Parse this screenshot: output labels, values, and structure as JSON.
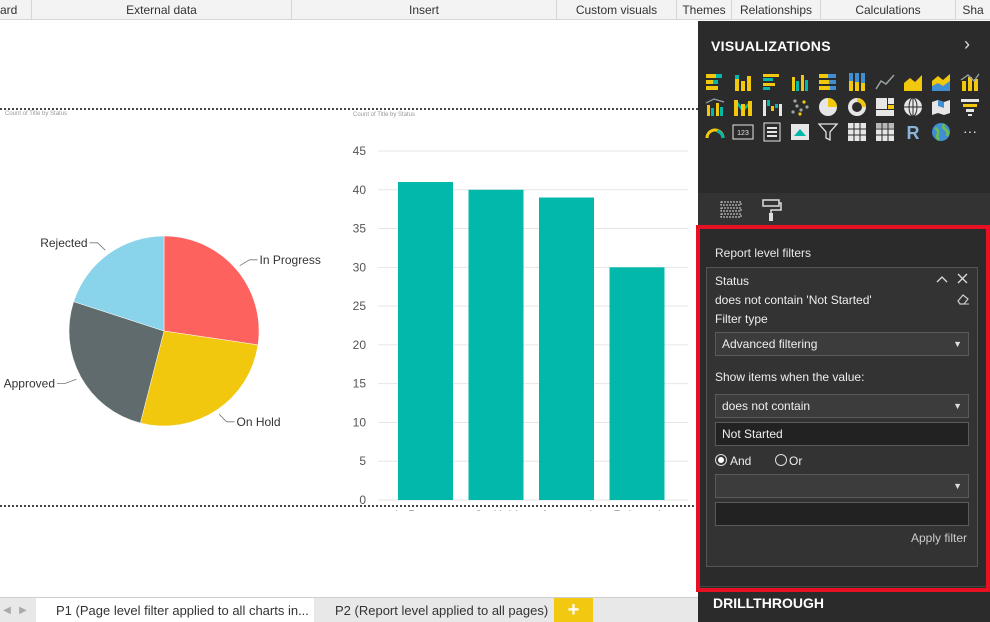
{
  "ribbon": {
    "groups": [
      "ard",
      "External data",
      "Insert",
      "Custom visuals",
      "Themes",
      "Relationships",
      "Calculations",
      "Sha"
    ]
  },
  "colors": {
    "teal": "#01b8aa",
    "in_progress": "#fd625e",
    "on_hold": "#f2c80f",
    "approved": "#5f6b6d",
    "rejected": "#8ad4eb",
    "accent_yellow": "#f2c811",
    "highlight_red": "#e81123"
  },
  "pie_chart": {
    "caption": "Count of Title by Status"
  },
  "bar_chart": {
    "caption": "Count of Title by Status"
  },
  "chart_data": [
    {
      "type": "pie",
      "categories": [
        "In Progress",
        "On Hold",
        "Approved",
        "Rejected"
      ],
      "values": [
        41,
        40,
        39,
        30
      ],
      "title": "Count of Title by Status"
    },
    {
      "type": "bar",
      "categories": [
        "In Progress",
        "On Hold",
        "Approved",
        "Rejected"
      ],
      "values": [
        41,
        40,
        39,
        30
      ],
      "title": "Count of Title by Status",
      "ylim": [
        0,
        45
      ],
      "yticks": [
        0,
        5,
        10,
        15,
        20,
        25,
        30,
        35,
        40,
        45
      ],
      "grid": true
    }
  ],
  "tabs": {
    "items": [
      {
        "label": "P1 (Page level filter applied to all charts in..."
      },
      {
        "label": "P2 (Report level applied to all pages)"
      }
    ],
    "add_label": "+"
  },
  "visualizations": {
    "title": "VISUALIZATIONS",
    "chevron": "›",
    "icons": [
      "stacked-bar-icon",
      "stacked-column-icon",
      "clustered-bar-icon",
      "clustered-column-icon",
      "100-bar-icon",
      "100-column-icon",
      "line-chart-icon",
      "area-chart-icon",
      "stacked-area-icon",
      "line-column-icon",
      "line-clustered-column-icon",
      "ribbon-chart-icon",
      "waterfall-icon",
      "scatter-icon",
      "pie-icon",
      "donut-icon",
      "treemap-icon",
      "map-icon",
      "filled-map-icon",
      "funnel-icon",
      "gauge-icon",
      "card-icon",
      "multi-row-card-icon",
      "kpi-icon",
      "slicer-icon",
      "table-icon",
      "matrix-icon",
      "r-visual-icon",
      "globe-icon",
      "more-icon"
    ],
    "card_label": "123",
    "r_label": "R",
    "more_label": "···"
  },
  "filters": {
    "section_title": "Report level filters",
    "card": {
      "field": "Status",
      "summary": "does not contain 'Not Started'",
      "filter_type_label": "Filter type",
      "filter_type_value": "Advanced filtering",
      "show_items_label": "Show items when the value:",
      "condition1": "does not contain",
      "value1": "Not Started",
      "and_label": "And",
      "or_label": "Or",
      "condition2": "",
      "value2": "",
      "apply_label": "Apply filter"
    }
  },
  "drillthrough": {
    "title": "DRILLTHROUGH"
  }
}
